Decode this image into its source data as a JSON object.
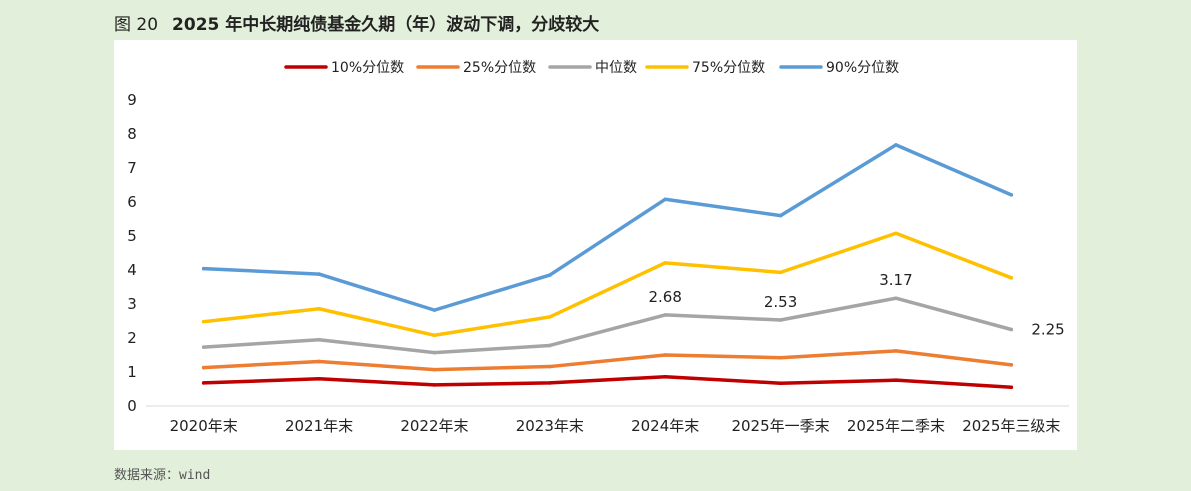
{
  "figure": {
    "number": "图 20",
    "title": "2025 年中长期纯债基金久期（年）波动下调，分歧较大",
    "source": "数据来源：wind"
  },
  "chart_data": {
    "type": "line",
    "categories": [
      "2020年末",
      "2021年末",
      "2022年末",
      "2023年末",
      "2024年末",
      "2025年一季末",
      "2025年二季末",
      "2025年三级末"
    ],
    "ylim": [
      0,
      9
    ],
    "yticks": [
      "0",
      "1",
      "2",
      "3",
      "4",
      "5",
      "6",
      "7",
      "8",
      "9"
    ],
    "grid": false,
    "legend_position": "top",
    "series": [
      {
        "name": "10%分位数",
        "color": "#c00000",
        "values": [
          0.68,
          0.8,
          0.62,
          0.68,
          0.86,
          0.67,
          0.76,
          0.55
        ]
      },
      {
        "name": "25%分位数",
        "color": "#ed7d31",
        "values": [
          1.13,
          1.31,
          1.07,
          1.16,
          1.5,
          1.42,
          1.62,
          1.21
        ]
      },
      {
        "name": "中位数",
        "color": "#a5a5a5",
        "values": [
          1.73,
          1.95,
          1.57,
          1.78,
          2.68,
          2.53,
          3.17,
          2.25
        ]
      },
      {
        "name": "75%分位数",
        "color": "#ffc000",
        "values": [
          2.48,
          2.86,
          2.08,
          2.62,
          4.21,
          3.93,
          5.08,
          3.77
        ]
      },
      {
        "name": "90%分位数",
        "color": "#5b9bd5",
        "values": [
          4.04,
          3.88,
          2.82,
          3.85,
          6.08,
          5.6,
          7.68,
          6.21
        ]
      }
    ],
    "data_labels": [
      {
        "series": 2,
        "index": 4,
        "text": "2.68"
      },
      {
        "series": 2,
        "index": 5,
        "text": "2.53"
      },
      {
        "series": 2,
        "index": 6,
        "text": "3.17"
      },
      {
        "series": 2,
        "index": 7,
        "text": "2.25"
      }
    ]
  }
}
